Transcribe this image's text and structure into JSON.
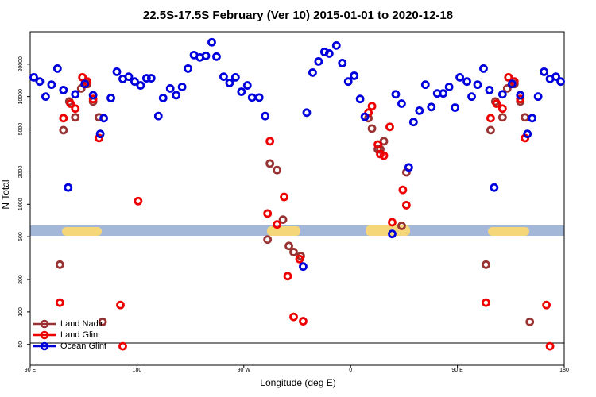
{
  "chart_data": {
    "type": "scatter",
    "title": "22.5S-17.5S February (Ver 10)   2015-01-01 to 2020-12-18",
    "xlabel": "Longitude (deg E)",
    "ylabel": "N Total",
    "xlim": [
      90,
      540
    ],
    "ylim": [
      32,
      40000
    ],
    "log_y": true,
    "xticks": [
      {
        "value": 90,
        "label": "90 E"
      },
      180,
      {
        "value": 270,
        "label": "90 W"
      },
      {
        "value": 360,
        "label": "0"
      },
      {
        "value": 450,
        "label": "90 E"
      },
      {
        "value": 540,
        "label": "180"
      }
    ],
    "yticks": [
      50,
      100,
      200,
      500,
      1000,
      2000,
      5000,
      10000,
      20000
    ],
    "legend": "lower left",
    "series": [
      {
        "name": "Land Nadir",
        "color": "#993333",
        "x": [
          118,
          123,
          128,
          133,
          138,
          143,
          148,
          115,
          151,
          290,
          292,
          298,
          303,
          308,
          312,
          318,
          375,
          378,
          383,
          385,
          388,
          403,
          407,
          478,
          482,
          488,
          492,
          498,
          503,
          507,
          474,
          511
        ],
        "values": [
          4880,
          9000,
          6420,
          11900,
          13100,
          9000,
          6420,
          275,
          81,
          470,
          2390,
          2080,
          720,
          410,
          360,
          330,
          6300,
          5050,
          3240,
          3240,
          3850,
          630,
          1980,
          4880,
          9000,
          6420,
          11900,
          13100,
          9000,
          6420,
          275,
          81
        ]
      },
      {
        "name": "Land Glint",
        "color": "#ee0000",
        "x": [
          118,
          124,
          128,
          134,
          138,
          143,
          148,
          115,
          166,
          168,
          181,
          290,
          292,
          298,
          304,
          307,
          312,
          317,
          320,
          375,
          378,
          383,
          385,
          388,
          393,
          395,
          404,
          407,
          478,
          483,
          488,
          493,
          498,
          503,
          507,
          474,
          525,
          528
        ],
        "values": [
          6300,
          8600,
          7740,
          15100,
          13800,
          9500,
          4120,
          122,
          116,
          48,
          1070,
          820,
          3850,
          650,
          1170,
          215,
          90,
          310,
          82,
          7100,
          8150,
          3590,
          2930,
          2830,
          5230,
          680,
          1360,
          980,
          6300,
          8600,
          7740,
          15100,
          13800,
          9500,
          4120,
          122,
          116,
          48
        ]
      },
      {
        "name": "Ocean Glint",
        "color": "#0000dd",
        "x": [
          93,
          98,
          103,
          108,
          113,
          118,
          122,
          128,
          136,
          143,
          149,
          152,
          158,
          163,
          168,
          173,
          178,
          183,
          188,
          192,
          198,
          202,
          208,
          213,
          218,
          223,
          228,
          233,
          238,
          243,
          247,
          253,
          258,
          263,
          268,
          273,
          277,
          283,
          288,
          320,
          323,
          328,
          333,
          338,
          342,
          348,
          353,
          358,
          363,
          368,
          372,
          395,
          398,
          403,
          409,
          413,
          418,
          423,
          428,
          433,
          438,
          443,
          448,
          452,
          458,
          462,
          467,
          472,
          477,
          481,
          488,
          496,
          503,
          509,
          513,
          518,
          523,
          528,
          533,
          537
        ],
        "values": [
          15100,
          13800,
          10000,
          12900,
          18200,
          11500,
          1430,
          10500,
          13100,
          10300,
          4500,
          6300,
          9700,
          17000,
          14600,
          15300,
          13800,
          12700,
          14800,
          14800,
          6600,
          9700,
          11900,
          10300,
          12300,
          18200,
          24300,
          23100,
          23900,
          31900,
          23500,
          15300,
          13400,
          15100,
          11100,
          12700,
          9800,
          9800,
          6600,
          264,
          7100,
          16700,
          21200,
          26000,
          25100,
          29800,
          20500,
          13800,
          15600,
          9500,
          6500,
          530,
          10500,
          8600,
          2200,
          5800,
          7400,
          12900,
          8000,
          10700,
          10700,
          12300,
          7900,
          15100,
          13800,
          10000,
          12900,
          18200,
          11500,
          1430,
          10500,
          13100,
          10300,
          4500,
          6300,
          10000,
          17000,
          14600,
          15300,
          13800
        ]
      }
    ]
  }
}
